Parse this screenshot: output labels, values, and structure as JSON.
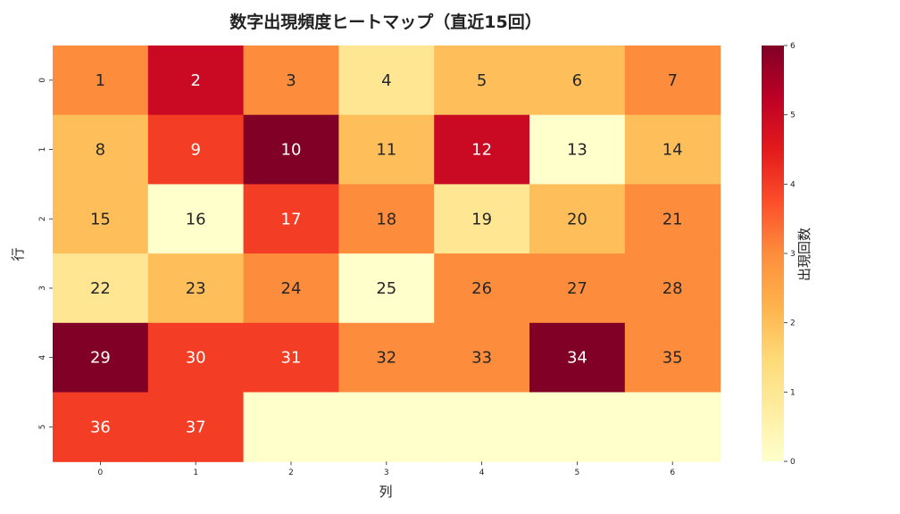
{
  "chart_data": {
    "type": "heatmap",
    "title": "数字出現頻度ヒートマップ（直近15回）",
    "xlabel": "列",
    "ylabel": "行",
    "x_ticks": [
      "0",
      "1",
      "2",
      "3",
      "4",
      "5",
      "6"
    ],
    "y_ticks": [
      "0",
      "1",
      "2",
      "3",
      "4",
      "5"
    ],
    "cells": [
      [
        {
          "label": "1",
          "value": 3
        },
        {
          "label": "2",
          "value": 5
        },
        {
          "label": "3",
          "value": 3
        },
        {
          "label": "4",
          "value": 1
        },
        {
          "label": "5",
          "value": 2
        },
        {
          "label": "6",
          "value": 2
        },
        {
          "label": "7",
          "value": 3
        }
      ],
      [
        {
          "label": "8",
          "value": 2
        },
        {
          "label": "9",
          "value": 4
        },
        {
          "label": "10",
          "value": 6
        },
        {
          "label": "11",
          "value": 2
        },
        {
          "label": "12",
          "value": 5
        },
        {
          "label": "13",
          "value": 0
        },
        {
          "label": "14",
          "value": 2
        }
      ],
      [
        {
          "label": "15",
          "value": 2
        },
        {
          "label": "16",
          "value": 0
        },
        {
          "label": "17",
          "value": 4
        },
        {
          "label": "18",
          "value": 3
        },
        {
          "label": "19",
          "value": 1
        },
        {
          "label": "20",
          "value": 2
        },
        {
          "label": "21",
          "value": 3
        }
      ],
      [
        {
          "label": "22",
          "value": 1
        },
        {
          "label": "23",
          "value": 2
        },
        {
          "label": "24",
          "value": 3
        },
        {
          "label": "25",
          "value": 0
        },
        {
          "label": "26",
          "value": 3
        },
        {
          "label": "27",
          "value": 3
        },
        {
          "label": "28",
          "value": 3
        }
      ],
      [
        {
          "label": "29",
          "value": 6
        },
        {
          "label": "30",
          "value": 4
        },
        {
          "label": "31",
          "value": 4
        },
        {
          "label": "32",
          "value": 3
        },
        {
          "label": "33",
          "value": 3
        },
        {
          "label": "34",
          "value": 6
        },
        {
          "label": "35",
          "value": 3
        }
      ],
      [
        {
          "label": "36",
          "value": 4
        },
        {
          "label": "37",
          "value": 4
        },
        {
          "label": "",
          "value": 0
        },
        {
          "label": "",
          "value": 0
        },
        {
          "label": "",
          "value": 0
        },
        {
          "label": "",
          "value": 0
        },
        {
          "label": "",
          "value": 0
        }
      ]
    ],
    "colorbar": {
      "label": "出現回数",
      "min": 0,
      "max": 6,
      "ticks": [
        "0",
        "1",
        "2",
        "3",
        "4",
        "5",
        "6"
      ]
    },
    "colormap": "YlOrRd",
    "colormap_stops": [
      "#ffffcc",
      "#ffeda0",
      "#fed976",
      "#feb24c",
      "#fd8d3c",
      "#fc4e2a",
      "#e31a1c",
      "#bd0026",
      "#800026"
    ]
  }
}
